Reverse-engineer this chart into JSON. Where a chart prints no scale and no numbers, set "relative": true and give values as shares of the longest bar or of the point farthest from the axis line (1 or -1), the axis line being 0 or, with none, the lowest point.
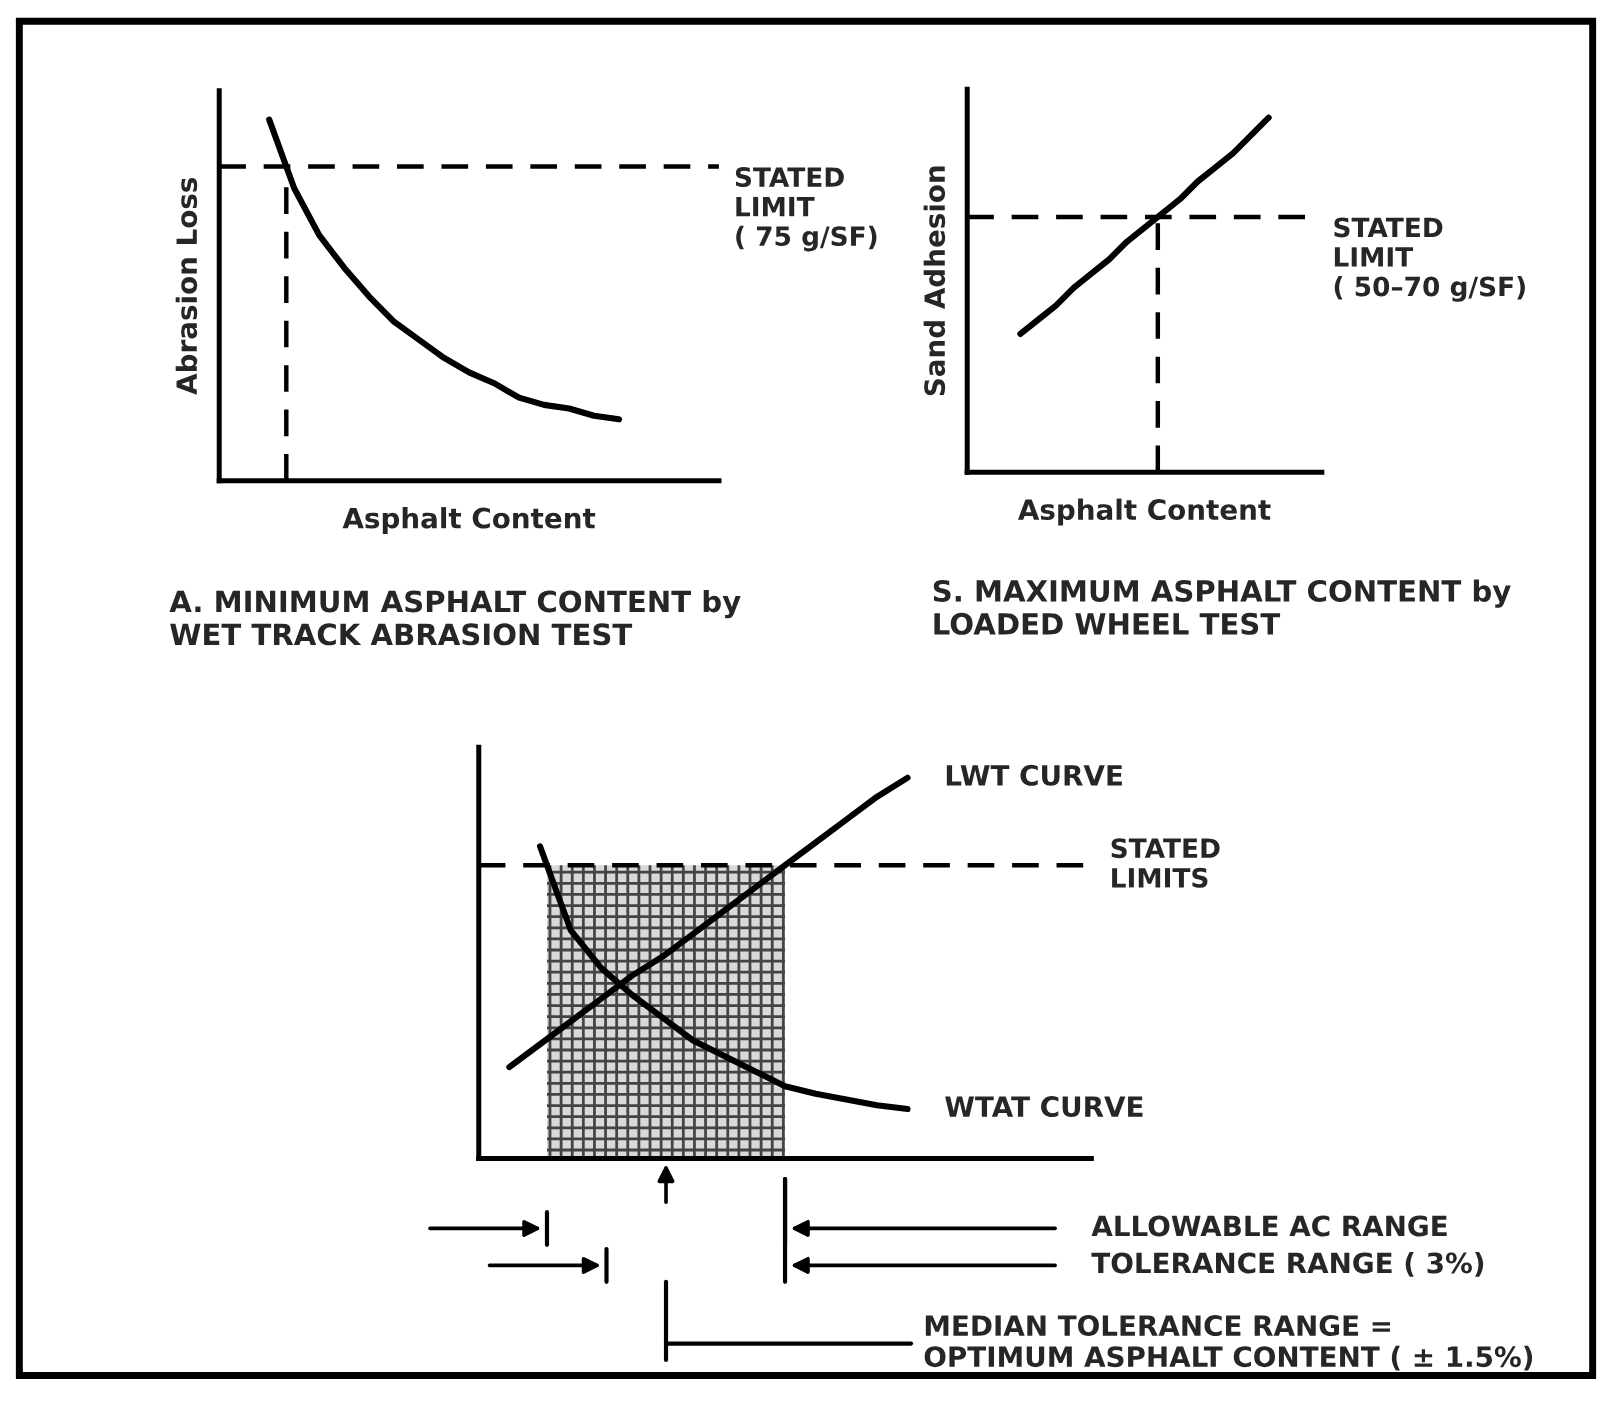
{
  "chart_data": [
    {
      "type": "line",
      "relative": true,
      "xlabel": "Asphalt Content",
      "ylabel": "Abrasion Loss",
      "title": "A. MINIMUM ASPHALT CONTENT by\nWET TRACK ABRASION TEST",
      "categories": [
        null,
        null,
        null,
        null,
        null,
        null,
        null,
        null,
        null,
        null,
        null,
        null,
        null,
        null,
        null,
        null,
        null,
        null,
        null,
        null,
        null
      ],
      "series": [
        {
          "color": "#000000",
          "values": [
            null,
            null,
            1,
            0.81,
            0.68,
            0.59,
            0.51,
            0.44,
            0.39,
            0.34,
            0.3,
            0.27,
            0.23,
            0.21,
            0.2,
            0.18,
            0.17,
            null,
            null,
            null,
            null
          ]
        }
      ],
      "ref_lines": [
        {
          "axis": "y",
          "value": 0.87,
          "label": "STATED\nLIMIT\n( 75 g/SF)",
          "line_style": "dashed"
        }
      ]
    },
    {
      "type": "line",
      "relative": true,
      "xlabel": "Asphalt Content",
      "ylabel": "Sand Adhesion",
      "title": "S. MAXIMUM ASPHALT CONTENT by\nLOADED WHEEL TEST",
      "categories": [
        null,
        null,
        null,
        null,
        null,
        null,
        null,
        null,
        null,
        null,
        null,
        null,
        null,
        null,
        null,
        null,
        null,
        null,
        null,
        null,
        null
      ],
      "series": [
        {
          "color": "#000000",
          "values": [
            null,
            null,
            null,
            0.39,
            0.43,
            0.47,
            0.52,
            0.56,
            0.6,
            0.65,
            0.69,
            0.73,
            0.77,
            0.82,
            0.86,
            0.9,
            0.95,
            1,
            null,
            null,
            null
          ]
        }
      ],
      "ref_lines": [
        {
          "axis": "y",
          "value": 0.72,
          "label": "STATED\nLIMIT\n( 50–70 g/SF)",
          "line_style": "dashed"
        }
      ]
    },
    {
      "type": "line",
      "relative": true,
      "categories": [
        null,
        null,
        null,
        null,
        null,
        null,
        null,
        null,
        null,
        null,
        null,
        null,
        null,
        null,
        null,
        null,
        null,
        null,
        null,
        null,
        null
      ],
      "series": [
        {
          "name": "LWT CURVE",
          "color": "#000000",
          "values": [
            null,
            0.24,
            0.3,
            0.36,
            0.42,
            0.48,
            0.53,
            0.59,
            0.65,
            0.71,
            0.77,
            0.83,
            0.89,
            0.95,
            1,
            null,
            null,
            null,
            null,
            null,
            null
          ]
        },
        {
          "name": "WTAT CURVE",
          "color": "#000000",
          "values": [
            null,
            null,
            0.82,
            0.6,
            0.5,
            0.43,
            0.37,
            0.31,
            0.27,
            0.23,
            0.19,
            0.17,
            0.155,
            0.14,
            0.13,
            null,
            null,
            null,
            null,
            null,
            null
          ]
        }
      ],
      "ref_lines": [
        {
          "axis": "y",
          "value": 0.77,
          "label": "STATED\nLIMITS",
          "line_style": "dashed"
        }
      ],
      "annotations": [
        "ALLOWABLE AC RANGE",
        "TOLERANCE RANGE ( 3%)",
        "MEDIAN TOLERANCE RANGE =\nOPTIMUM ASPHALT CONTENT ( ± 1.5%)"
      ]
    }
  ]
}
